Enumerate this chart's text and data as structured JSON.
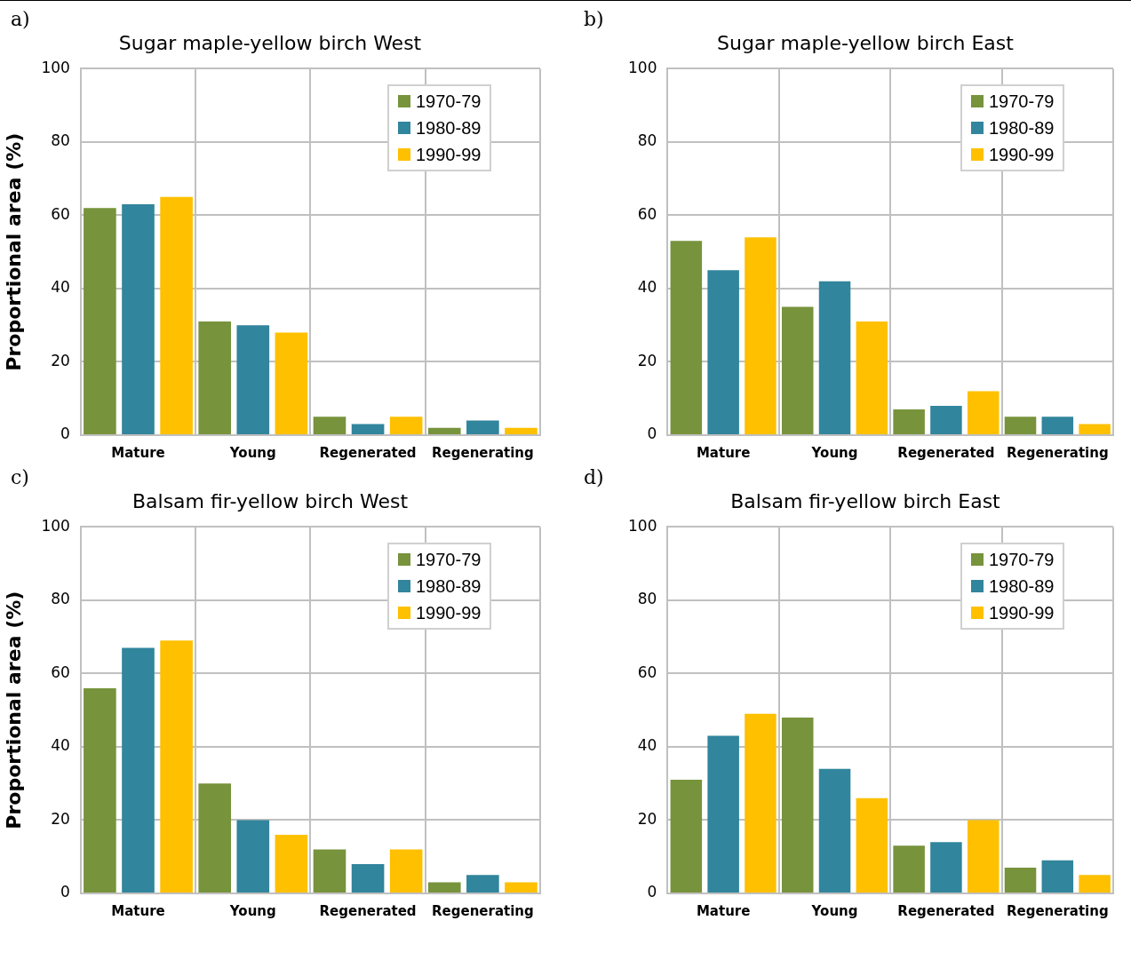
{
  "chart_data": [
    {
      "type": "bar",
      "title": "Sugar maple-yellow birch West",
      "ylabel": "Proportional area (%)",
      "annotations": [
        "a)"
      ],
      "categories": [
        "Mature",
        "Young",
        "Regenerated",
        "Regenerating"
      ],
      "series": [
        {
          "name": "1970-79",
          "color": "#77933c",
          "values": [
            62,
            31,
            5,
            2
          ]
        },
        {
          "name": "1980-89",
          "color": "#31859c",
          "values": [
            63,
            30,
            3,
            4
          ]
        },
        {
          "name": "1990-99",
          "color": "#ffc000",
          "values": [
            65,
            28,
            5,
            2
          ]
        }
      ],
      "ylim": [
        0,
        100
      ],
      "yticks": [
        0,
        20,
        40,
        60,
        80,
        100
      ],
      "grid": true,
      "legend": "top right"
    },
    {
      "type": "bar",
      "title": "Sugar maple-yellow birch East",
      "annotations": [
        "b)"
      ],
      "categories": [
        "Mature",
        "Young",
        "Regenerated",
        "Regenerating"
      ],
      "series": [
        {
          "name": "1970-79",
          "color": "#77933c",
          "values": [
            53,
            35,
            7,
            5
          ]
        },
        {
          "name": "1980-89",
          "color": "#31859c",
          "values": [
            45,
            42,
            8,
            5
          ]
        },
        {
          "name": "1990-99",
          "color": "#ffc000",
          "values": [
            54,
            31,
            12,
            3
          ]
        }
      ],
      "ylim": [
        0,
        100
      ],
      "yticks": [
        0,
        20,
        40,
        60,
        80,
        100
      ],
      "grid": true,
      "legend": "top right"
    },
    {
      "type": "bar",
      "title": "Balsam fir-yellow birch West",
      "ylabel": "Proportional area (%)",
      "annotations": [
        "c)"
      ],
      "categories": [
        "Mature",
        "Young",
        "Regenerated",
        "Regenerating"
      ],
      "series": [
        {
          "name": "1970-79",
          "color": "#77933c",
          "values": [
            56,
            30,
            12,
            3
          ]
        },
        {
          "name": "1980-89",
          "color": "#31859c",
          "values": [
            67,
            20,
            8,
            5
          ]
        },
        {
          "name": "1990-99",
          "color": "#ffc000",
          "values": [
            69,
            16,
            12,
            3
          ]
        }
      ],
      "ylim": [
        0,
        100
      ],
      "yticks": [
        0,
        20,
        40,
        60,
        80,
        100
      ],
      "grid": true,
      "legend": "top right"
    },
    {
      "type": "bar",
      "title": "Balsam fir-yellow birch East",
      "annotations": [
        "d)"
      ],
      "categories": [
        "Mature",
        "Young",
        "Regenerated",
        "Regenerating"
      ],
      "series": [
        {
          "name": "1970-79",
          "color": "#77933c",
          "values": [
            31,
            48,
            13,
            7
          ]
        },
        {
          "name": "1980-89",
          "color": "#31859c",
          "values": [
            43,
            34,
            14,
            9
          ]
        },
        {
          "name": "1990-99",
          "color": "#ffc000",
          "values": [
            49,
            26,
            20,
            5
          ]
        }
      ],
      "ylim": [
        0,
        100
      ],
      "yticks": [
        0,
        20,
        40,
        60,
        80,
        100
      ],
      "grid": true,
      "legend": "top right"
    }
  ]
}
